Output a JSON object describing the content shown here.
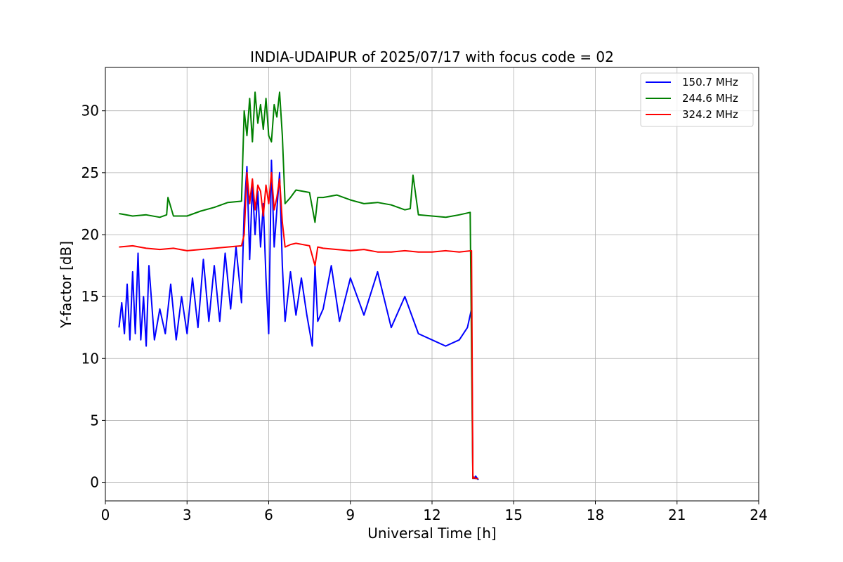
{
  "chart_data": {
    "type": "line",
    "title": "INDIA-UDAIPUR of 2025/07/17 with focus code = 02",
    "xlabel": "Universal Time [h]",
    "ylabel": "Y-factor [dB]",
    "xlim": [
      0,
      24
    ],
    "ylim": [
      -1.5,
      33.5
    ],
    "xticks": [
      0,
      3,
      6,
      9,
      12,
      15,
      18,
      21,
      24
    ],
    "yticks": [
      0,
      5,
      10,
      15,
      20,
      25,
      30
    ],
    "grid": true,
    "legend_position": "top-right",
    "series": [
      {
        "name": "150.7 MHz",
        "color": "#0000ff",
        "x": [
          0.5,
          0.6,
          0.7,
          0.8,
          0.9,
          1.0,
          1.1,
          1.2,
          1.3,
          1.4,
          1.5,
          1.6,
          1.8,
          2.0,
          2.2,
          2.4,
          2.6,
          2.8,
          3.0,
          3.2,
          3.4,
          3.6,
          3.8,
          4.0,
          4.2,
          4.4,
          4.6,
          4.8,
          5.0,
          5.1,
          5.2,
          5.3,
          5.4,
          5.5,
          5.6,
          5.7,
          5.8,
          5.9,
          6.0,
          6.1,
          6.2,
          6.3,
          6.4,
          6.5,
          6.6,
          6.8,
          7.0,
          7.2,
          7.4,
          7.6,
          7.7,
          7.8,
          8.0,
          8.3,
          8.6,
          9.0,
          9.5,
          10.0,
          10.5,
          11.0,
          11.5,
          12.0,
          12.5,
          13.0,
          13.3,
          13.45,
          13.5,
          13.55,
          13.6,
          13.7
        ],
        "values": [
          12.5,
          14.5,
          12.0,
          16.0,
          11.5,
          17.0,
          12.0,
          18.5,
          11.5,
          15.0,
          11.0,
          17.5,
          11.5,
          14.0,
          12.0,
          16.0,
          11.5,
          15.0,
          12.0,
          16.5,
          12.5,
          18.0,
          13.0,
          17.5,
          13.0,
          18.5,
          14.0,
          19.0,
          14.5,
          22.0,
          25.5,
          18.0,
          24.0,
          20.0,
          23.5,
          19.0,
          22.5,
          16.5,
          12.0,
          26.0,
          19.0,
          22.0,
          25.0,
          17.5,
          13.0,
          17.0,
          13.5,
          16.5,
          13.5,
          11.0,
          17.5,
          13.0,
          14.0,
          17.5,
          13.0,
          16.5,
          13.5,
          17.0,
          12.5,
          15.0,
          12.0,
          11.5,
          11.0,
          11.5,
          12.5,
          14.0,
          0.5,
          0.3,
          0.5,
          0.2
        ]
      },
      {
        "name": "244.6 MHz",
        "color": "#008000",
        "x": [
          0.5,
          1.0,
          1.5,
          2.0,
          2.25,
          2.3,
          2.5,
          3.0,
          3.5,
          4.0,
          4.5,
          5.0,
          5.1,
          5.2,
          5.3,
          5.4,
          5.5,
          5.6,
          5.7,
          5.8,
          5.9,
          6.0,
          6.1,
          6.2,
          6.3,
          6.4,
          6.5,
          6.6,
          6.8,
          7.0,
          7.5,
          7.7,
          7.8,
          8.0,
          8.5,
          9.0,
          9.5,
          10.0,
          10.5,
          11.0,
          11.2,
          11.3,
          11.5,
          12.0,
          12.5,
          13.0,
          13.4,
          13.5,
          13.55,
          13.6,
          13.7
        ],
        "values": [
          21.7,
          21.5,
          21.6,
          21.4,
          21.6,
          23.0,
          21.5,
          21.5,
          21.9,
          22.2,
          22.6,
          22.7,
          30.0,
          28.0,
          31.0,
          27.5,
          31.5,
          29.0,
          30.5,
          28.5,
          31.0,
          28.0,
          27.5,
          30.5,
          29.5,
          31.5,
          28.0,
          22.5,
          23.0,
          23.6,
          23.4,
          21.0,
          23.0,
          23.0,
          23.2,
          22.8,
          22.5,
          22.6,
          22.4,
          22.0,
          22.1,
          24.8,
          21.6,
          21.5,
          21.4,
          21.6,
          21.8,
          0.3,
          0.4,
          0.3,
          0.3
        ]
      },
      {
        "name": "324.2 MHz",
        "color": "#ff0000",
        "x": [
          0.5,
          1.0,
          1.5,
          2.0,
          2.5,
          3.0,
          3.5,
          4.0,
          4.5,
          5.0,
          5.1,
          5.2,
          5.3,
          5.4,
          5.5,
          5.6,
          5.7,
          5.8,
          5.9,
          6.0,
          6.1,
          6.2,
          6.3,
          6.4,
          6.5,
          6.6,
          6.8,
          7.0,
          7.5,
          7.7,
          7.8,
          8.0,
          8.5,
          9.0,
          9.5,
          10.0,
          10.5,
          11.0,
          11.5,
          12.0,
          12.5,
          13.0,
          13.45,
          13.5,
          13.55,
          13.6,
          13.7
        ],
        "values": [
          19.0,
          19.1,
          18.9,
          18.8,
          18.9,
          18.7,
          18.8,
          18.9,
          19.0,
          19.1,
          20.0,
          25.0,
          22.5,
          24.5,
          22.0,
          24.0,
          23.5,
          21.5,
          24.0,
          22.5,
          25.0,
          22.0,
          23.0,
          24.5,
          21.0,
          19.0,
          19.2,
          19.3,
          19.1,
          17.5,
          19.0,
          18.9,
          18.8,
          18.7,
          18.8,
          18.6,
          18.6,
          18.7,
          18.6,
          18.6,
          18.7,
          18.6,
          18.7,
          0.3,
          0.4,
          0.3,
          0.3
        ]
      }
    ]
  }
}
